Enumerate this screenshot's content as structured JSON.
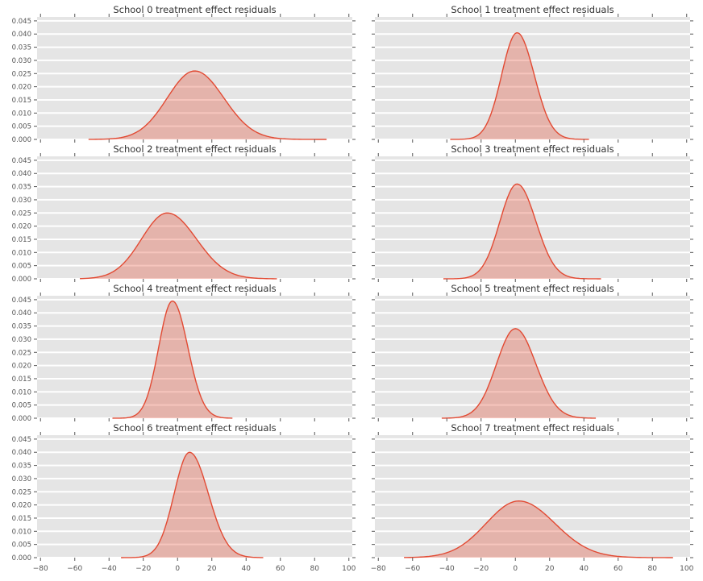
{
  "chart_data": {
    "type": "area",
    "subtype": "kde-density-grid",
    "layout": "4 rows x 2 columns",
    "xlabel": "",
    "ylabel": "",
    "xlim": [
      -82,
      102
    ],
    "ylim": [
      0,
      0.0465
    ],
    "x_ticks": [
      -80,
      -60,
      -40,
      -20,
      0,
      20,
      40,
      60,
      80,
      100
    ],
    "x_tick_labels": [
      "−80",
      "−60",
      "−40",
      "−20",
      "0",
      "20",
      "40",
      "60",
      "80",
      "100"
    ],
    "y_ticks": [
      0.0,
      0.005,
      0.01,
      0.015,
      0.02,
      0.025,
      0.03,
      0.035,
      0.04,
      0.045
    ],
    "y_tick_labels": [
      "0.000",
      "0.005",
      "0.010",
      "0.015",
      "0.020",
      "0.025",
      "0.030",
      "0.035",
      "0.040",
      "0.045"
    ],
    "grid": "horizontal white gridlines on grey panel background",
    "legend": "none",
    "style": {
      "background": "#e5e5e5",
      "grid_color": "#ffffff",
      "line_color": "#e24a33",
      "fill_color": "rgba(226,74,51,0.32)",
      "tick_color": "#555555",
      "title_color": "#333333"
    },
    "subplots": [
      {
        "title": "School 0 treatment effect residuals",
        "peak_x": 10,
        "peak_density": 0.026,
        "sigma_left": 16,
        "sigma_right": 17,
        "support": [
          -52,
          87
        ]
      },
      {
        "title": "School 1 treatment effect residuals",
        "peak_x": 1,
        "peak_density": 0.0405,
        "sigma_left": 9,
        "sigma_right": 10,
        "support": [
          -38,
          43
        ]
      },
      {
        "title": "School 2 treatment effect residuals",
        "peak_x": -6,
        "peak_density": 0.025,
        "sigma_left": 15,
        "sigma_right": 17,
        "support": [
          -57,
          58
        ]
      },
      {
        "title": "School 3 treatment effect residuals",
        "peak_x": 1,
        "peak_density": 0.036,
        "sigma_left": 10,
        "sigma_right": 11,
        "support": [
          -42,
          50
        ]
      },
      {
        "title": "School 4 treatment effect residuals",
        "peak_x": -3,
        "peak_density": 0.0445,
        "sigma_left": 8,
        "sigma_right": 9,
        "support": [
          -38,
          32
        ]
      },
      {
        "title": "School 5 treatment effect residuals",
        "peak_x": 0,
        "peak_density": 0.034,
        "sigma_left": 11,
        "sigma_right": 12,
        "support": [
          -43,
          47
        ]
      },
      {
        "title": "School 6 treatment effect residuals",
        "peak_x": 7,
        "peak_density": 0.04,
        "sigma_left": 9,
        "sigma_right": 11,
        "support": [
          -33,
          50
        ]
      },
      {
        "title": "School 7 treatment effect residuals",
        "peak_x": 2,
        "peak_density": 0.0215,
        "sigma_left": 19,
        "sigma_right": 21,
        "support": [
          -65,
          92
        ]
      }
    ]
  }
}
